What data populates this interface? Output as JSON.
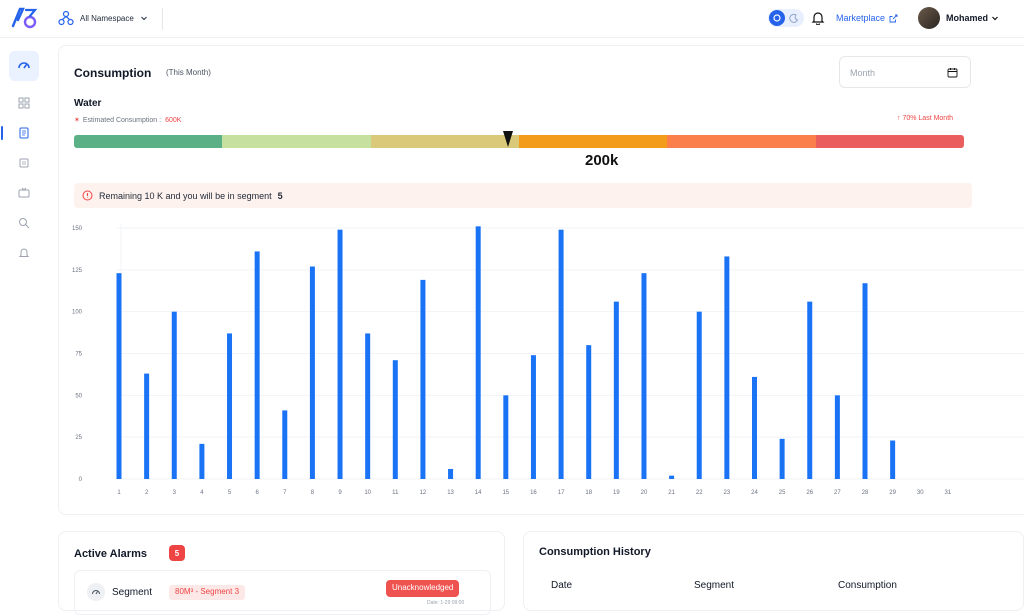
{
  "header": {
    "namespace_label": "All Namespace",
    "marketplace_label": "Marketplace",
    "user_name": "Mohamed"
  },
  "consumption": {
    "title": "Consumption",
    "subtitle": "(This Month)",
    "month_placeholder": "Month",
    "resource": "Water",
    "estimated_label": "Estimated Consumption :",
    "estimated_value": "600K",
    "last_month_label": "70% Last Month",
    "current_value_label": "200k",
    "segment_colors": [
      "#5bb085",
      "#c5e09f",
      "#dbc97a",
      "#f39c1b",
      "#fb7f4a",
      "#eb5e5e"
    ],
    "marker_position_fraction": 0.487,
    "alert_text": "Remaining 10 K and you will be in segment",
    "alert_segment": "5"
  },
  "chart_data": {
    "type": "bar",
    "categories": [
      "1",
      "2",
      "3",
      "4",
      "5",
      "6",
      "7",
      "8",
      "9",
      "10",
      "11",
      "12",
      "13",
      "14",
      "15",
      "16",
      "17",
      "18",
      "19",
      "20",
      "21",
      "22",
      "23",
      "24",
      "25",
      "26",
      "27",
      "28",
      "29",
      "30",
      "31"
    ],
    "values": [
      123,
      63,
      100,
      21,
      87,
      136,
      41,
      127,
      149,
      87,
      71,
      119,
      6,
      151,
      50,
      74,
      149,
      80,
      106,
      123,
      2,
      100,
      133,
      61,
      24,
      106,
      50,
      117,
      23,
      0,
      0
    ],
    "ylim": [
      0,
      150
    ],
    "yticks": [
      "0",
      "25",
      "50",
      "75",
      "100",
      "125",
      "150"
    ],
    "bar_color": "#1a73f5",
    "grid": true
  },
  "alarms": {
    "title": "Active Alarms",
    "count": "5",
    "row": {
      "name": "Segment",
      "tag": "80M³ - Segment 3",
      "status": "Unacknowledged",
      "date": "Date: 1-29 09:00"
    }
  },
  "history": {
    "title": "Consumption History",
    "columns": [
      "Date",
      "Segment",
      "Consumption"
    ]
  }
}
